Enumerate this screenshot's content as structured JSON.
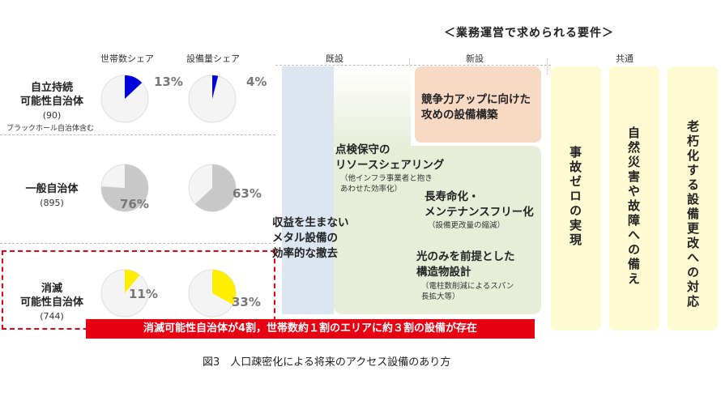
{
  "header": {
    "requirements_title": "＜業務運営で求められる要件＞",
    "col_household_share": "世帯数シェア",
    "col_equipment_share": "設備量シェア",
    "col_existing": "既設",
    "col_new": "新設",
    "col_common": "共通"
  },
  "rows": [
    {
      "name_line1": "自立持続",
      "name_line2": "可能性自治体",
      "count": "(90)",
      "note": "ブラックホール自治体含む",
      "household_pct_label": "13%",
      "equipment_pct_label": "4%",
      "household_share": 0.13,
      "equipment_share": 0.04,
      "color": "#0000dd"
    },
    {
      "name_line1": "一般自治体",
      "name_line2": "",
      "count": "(895)",
      "note": "",
      "household_pct_label": "76%",
      "equipment_pct_label": "63%",
      "household_share": 0.76,
      "equipment_share": 0.63,
      "color": "#c8c8c8"
    },
    {
      "name_line1": "消滅",
      "name_line2": "可能性自治体",
      "count": "(744)",
      "note": "",
      "household_pct_label": "11%",
      "equipment_pct_label": "33%",
      "household_share": 0.11,
      "equipment_share": 0.33,
      "color": "#ffee00"
    }
  ],
  "existing_box": {
    "line1": "収益を生まない",
    "line2": "メタル設備の",
    "line3": "効率的な撤去"
  },
  "new_items": {
    "competitive_line1": "競争力アップに向けた",
    "competitive_line2": "攻めの設備構築",
    "inspection_line1": "点検保守の",
    "inspection_line2": "リソースシェアリング",
    "inspection_sub1": "（他インフラ事業者と抱き",
    "inspection_sub2": "あわせた効率化）",
    "longlife_line1": "長寿命化・",
    "longlife_line2": "メンテナンスフリー化",
    "longlife_sub": "（設備更改量の縮減）",
    "light_line1": "光のみを前提とした",
    "light_line2": "構造物設計",
    "light_sub1": "（電柱数削減によるスパン",
    "light_sub2": "長拡大等）"
  },
  "common_items": {
    "zero_accidents": "事故ゼロの実現",
    "disaster": "自然災害や故障への備え",
    "aging": "老朽化する設備更改への対応"
  },
  "banner": "消滅可能性自治体が4割，世帯数約１割のエリアに約３割の設備が存在",
  "caption": "図3　人口疎密化による将来のアクセス設備のあり方"
}
